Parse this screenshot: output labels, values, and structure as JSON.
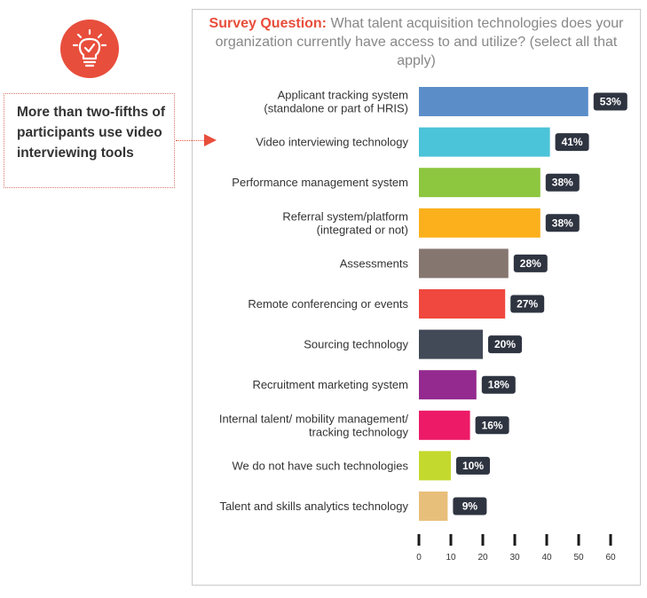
{
  "title": {
    "prefix": "Survey Question:",
    "text": "What talent acquisition technologies does your organization currently have access to and utilize? (select all that apply)"
  },
  "callout": {
    "text": "More than two-fifths of participants use video interviewing tools",
    "icon": "lightbulb-check-icon"
  },
  "colors": {
    "accent": "#e84e3c",
    "label_bg": "#2f3441"
  },
  "chart_data": {
    "type": "bar",
    "orientation": "horizontal",
    "categories": [
      [
        "Applicant tracking system",
        "(standalone or part of HRIS)"
      ],
      [
        "Video interviewing technology"
      ],
      [
        "Performance management system"
      ],
      [
        "Referral system/platform",
        "(integrated or not)"
      ],
      [
        "Assessments"
      ],
      [
        "Remote conferencing or events"
      ],
      [
        "Sourcing technology"
      ],
      [
        "Recruitment marketing system"
      ],
      [
        "Internal talent/ mobility management/",
        "tracking technology"
      ],
      [
        "We do not have such technologies"
      ],
      [
        "Talent and skills analytics technology"
      ]
    ],
    "values": [
      53,
      41,
      38,
      38,
      28,
      27,
      20,
      18,
      16,
      10,
      9
    ],
    "value_labels": [
      "53%",
      "41%",
      "38%",
      "38%",
      "28%",
      "27%",
      "20%",
      "18%",
      "16%",
      "10%",
      "9%"
    ],
    "bar_colors": [
      "#5b8ec9",
      "#4bc3d8",
      "#8dc63f",
      "#fbb01c",
      "#867670",
      "#f0483e",
      "#424a58",
      "#942a8f",
      "#ec1a67",
      "#c4d92e",
      "#e8bf7a"
    ],
    "x_ticks": [
      0,
      10,
      20,
      30,
      40,
      50,
      60
    ],
    "xlim": [
      0,
      60
    ],
    "title": "",
    "xlabel": "",
    "ylabel": ""
  }
}
